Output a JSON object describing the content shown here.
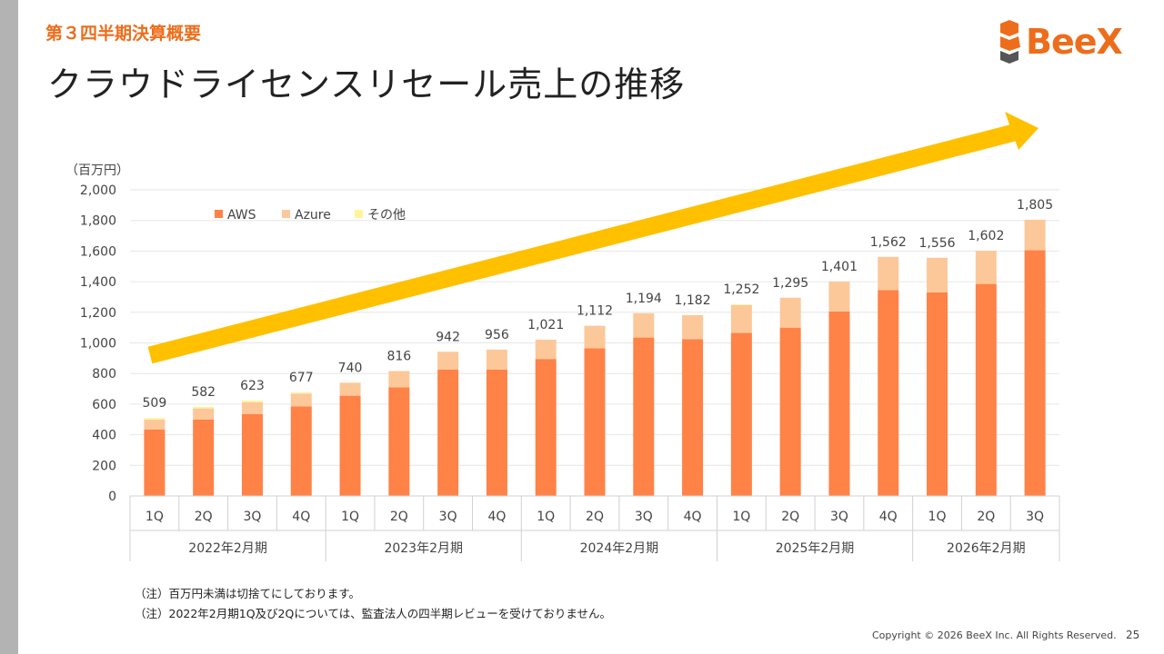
{
  "header": {
    "section": "第３四半期決算概要",
    "title": "クラウドライセンスリセール売上の推移",
    "logo_text": "BeeX",
    "brand_color": "#ed6d1b"
  },
  "chart_data": {
    "type": "bar",
    "stacked": true,
    "unit_label": "（百万円）",
    "ylim": [
      0,
      2000
    ],
    "yticks": [
      "0",
      "200",
      "400",
      "600",
      "800",
      "1,000",
      "1,200",
      "1,400",
      "1,600",
      "1,800",
      "2,000"
    ],
    "ytick_values": [
      0,
      200,
      400,
      600,
      800,
      1000,
      1200,
      1400,
      1600,
      1800,
      2000
    ],
    "categories": [
      "1Q",
      "2Q",
      "3Q",
      "4Q",
      "1Q",
      "2Q",
      "3Q",
      "4Q",
      "1Q",
      "2Q",
      "3Q",
      "4Q",
      "1Q",
      "2Q",
      "3Q",
      "4Q",
      "1Q",
      "2Q",
      "3Q"
    ],
    "groups": [
      {
        "label": "2022年2月期",
        "count": 4
      },
      {
        "label": "2023年2月期",
        "count": 4
      },
      {
        "label": "2024年2月期",
        "count": 4
      },
      {
        "label": "2025年2月期",
        "count": 4
      },
      {
        "label": "2026年2月期",
        "count": 3
      }
    ],
    "series": [
      {
        "name": "AWS",
        "color": "#ff8247",
        "values": [
          435,
          500,
          535,
          585,
          655,
          710,
          825,
          825,
          895,
          965,
          1035,
          1025,
          1065,
          1100,
          1205,
          1345,
          1330,
          1385,
          1605
        ]
      },
      {
        "name": "Azure",
        "color": "#fcc89a",
        "values": [
          64,
          72,
          77,
          84,
          85,
          106,
          117,
          131,
          126,
          147,
          159,
          157,
          182,
          195,
          196,
          217,
          226,
          217,
          200
        ]
      },
      {
        "name": "その他",
        "color": "#fff49a",
        "values": [
          10,
          10,
          11,
          8,
          0,
          0,
          0,
          0,
          0,
          0,
          0,
          0,
          5,
          0,
          0,
          0,
          0,
          0,
          0
        ]
      }
    ],
    "totals": [
      "509",
      "582",
      "623",
      "677",
      "740",
      "816",
      "942",
      "956",
      "1,021",
      "1,112",
      "1,194",
      "1,182",
      "1,252",
      "1,295",
      "1,401",
      "1,562",
      "1,556",
      "1,602",
      "1,805"
    ],
    "total_values": [
      509,
      582,
      623,
      677,
      740,
      816,
      942,
      956,
      1021,
      1112,
      1194,
      1182,
      1252,
      1295,
      1401,
      1562,
      1556,
      1602,
      1805
    ],
    "trend_arrow_color": "#ffc000"
  },
  "notes": [
    "（注）百万円未満は切捨てにしております。",
    "（注）2022年2月期1Q及び2Qについては、監査法人の四半期レビューを受けておりません。"
  ],
  "footer": {
    "copyright": "Copyright © 2026 BeeX Inc. All Rights Reserved.",
    "page": "25"
  }
}
